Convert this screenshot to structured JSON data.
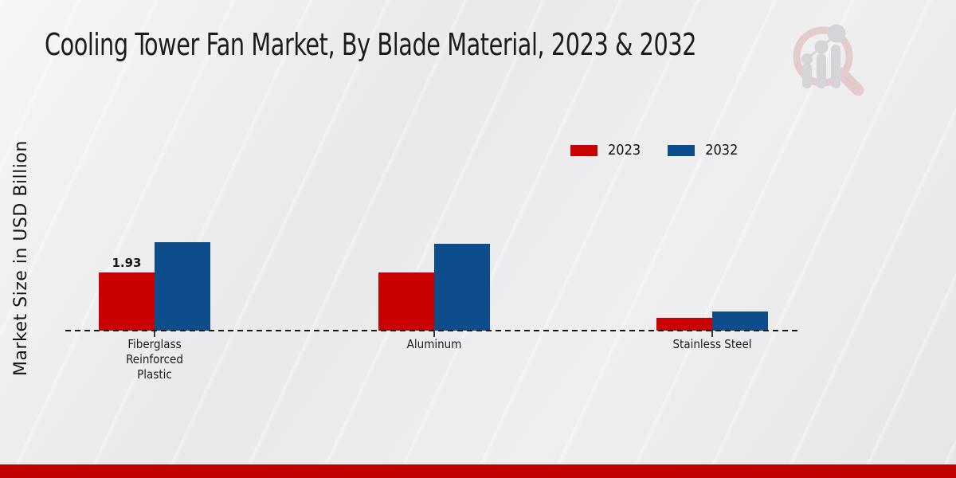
{
  "page": {
    "title": "Cooling Tower Fan Market, By Blade Material, 2023 & 2032",
    "y_axis_label": "Market Size in USD Billion",
    "footer_color": "#c00000",
    "background_color": "#e9e9eb"
  },
  "logo": {
    "name": "market-research-future-watermark",
    "ring_color": "#e5c9c9",
    "bars_color": "#d2d2d7"
  },
  "chart_data": {
    "type": "bar",
    "title": "Cooling Tower Fan Market, By Blade Material, 2023 & 2032",
    "xlabel": "",
    "ylabel": "Market Size in USD Billion",
    "categories": [
      "Fiberglass Reinforced Plastic",
      "Aluminum",
      "Stainless Steel"
    ],
    "series": [
      {
        "name": "2023",
        "color": "#c90201",
        "values": [
          1.93,
          1.92,
          0.43
        ],
        "data_labels": [
          "1.93",
          "",
          ""
        ]
      },
      {
        "name": "2032",
        "color": "#0d4d8b",
        "values": [
          2.93,
          2.88,
          0.64
        ],
        "data_labels": [
          "",
          "",
          ""
        ]
      }
    ],
    "ylim": [
      0,
      3.2
    ],
    "grid": false,
    "y_ticks_visible": false,
    "legend_position": "top-right",
    "baseline_style": "dashed"
  }
}
